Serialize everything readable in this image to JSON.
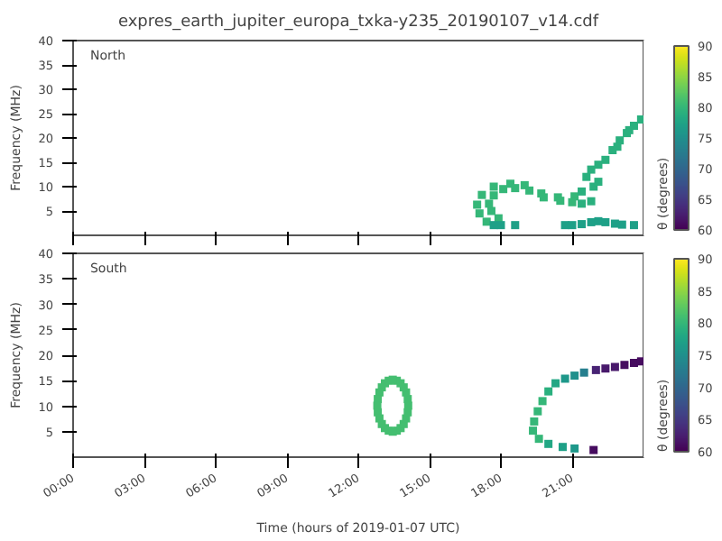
{
  "chart_data": [
    {
      "type": "scatter",
      "title": "expres_earth_jupiter_europa_txka-y235_20190107_v14.cdf",
      "ylabel": "Frequency (MHz)",
      "clabel": "θ (degrees)",
      "annotations": [
        "North"
      ],
      "marker": "square",
      "tick_labels": "y",
      "xlim": [
        0,
        24
      ],
      "xticks": [
        {
          "value": 0,
          "label": null
        },
        {
          "value": 3,
          "label": null
        },
        {
          "value": 6,
          "label": null
        },
        {
          "value": 9,
          "label": null
        },
        {
          "value": 12,
          "label": null
        },
        {
          "value": 15,
          "label": null
        },
        {
          "value": 18,
          "label": null
        },
        {
          "value": 21,
          "label": null
        }
      ],
      "ylim": [
        0,
        40
      ],
      "yticks": [
        5,
        10,
        15,
        20,
        25,
        30,
        35,
        40
      ],
      "clim": [
        60,
        90
      ],
      "cticks": [
        60,
        65,
        70,
        75,
        80,
        85,
        90
      ],
      "x": [
        17.4,
        17.1,
        17.0,
        17.2,
        17.7,
        18.4,
        19.0,
        19.7,
        20.4,
        21.1,
        17.9,
        17.6,
        17.5,
        17.7,
        18.1,
        18.6,
        19.2,
        19.8,
        20.5,
        21.0,
        21.4,
        21.4,
        21.6,
        21.8,
        21.9,
        21.8,
        22.1,
        22.1,
        22.4,
        22.7,
        23.0,
        23.3,
        23.6,
        23.9,
        22.9,
        23.4,
        17.7,
        18.0,
        18.6,
        20.7,
        21.0,
        21.4,
        21.8,
        22.1,
        22.4,
        22.8,
        23.1,
        23.6
      ],
      "values": [
        2.8,
        4.5,
        6.3,
        8.3,
        10.0,
        10.6,
        10.3,
        8.6,
        7.8,
        8.0,
        3.5,
        5.0,
        6.5,
        8.2,
        9.5,
        9.7,
        9.2,
        7.8,
        7.1,
        6.8,
        6.5,
        9.0,
        12.0,
        7.0,
        10.0,
        13.5,
        14.5,
        11.0,
        15.5,
        17.5,
        19.5,
        21.0,
        22.5,
        23.8,
        18.2,
        21.6,
        2.1,
        2.1,
        2.1,
        2.1,
        2.1,
        2.3,
        2.7,
        2.9,
        2.7,
        2.4,
        2.2,
        2.1
      ],
      "cvalues": [
        80,
        80,
        80,
        80,
        80,
        80,
        80,
        80,
        80,
        80,
        80,
        80,
        80,
        80,
        80,
        80,
        80,
        80,
        80,
        80,
        79,
        79,
        79,
        79,
        79,
        79,
        79,
        79,
        79,
        79,
        79,
        79,
        79,
        79,
        79,
        79,
        77,
        77,
        77,
        77,
        77,
        77,
        77,
        77,
        77,
        77,
        77,
        77
      ]
    },
    {
      "type": "scatter",
      "xlabel": "Time (hours of 2019-01-07 UTC)",
      "ylabel": "Frequency (MHz)",
      "clabel": "θ (degrees)",
      "annotations": [
        "South"
      ],
      "marker": "square",
      "xlim": [
        0,
        24
      ],
      "xticks": [
        {
          "value": 0,
          "label": "00:00"
        },
        {
          "value": 3,
          "label": "03:00"
        },
        {
          "value": 6,
          "label": "06:00"
        },
        {
          "value": 9,
          "label": "09:00"
        },
        {
          "value": 12,
          "label": "12:00"
        },
        {
          "value": 15,
          "label": "15:00"
        },
        {
          "value": 18,
          "label": "18:00"
        },
        {
          "value": 21,
          "label": "21:00"
        }
      ],
      "ylim": [
        0,
        40
      ],
      "yticks": [
        5,
        10,
        15,
        20,
        25,
        30,
        35,
        40
      ],
      "clim": [
        60,
        90
      ],
      "cticks": [
        60,
        65,
        70,
        75,
        80,
        85,
        90
      ],
      "x": [
        14.1,
        14.08,
        14.01,
        13.91,
        13.78,
        13.62,
        13.45,
        13.28,
        13.12,
        12.99,
        12.89,
        12.82,
        12.8,
        12.82,
        12.89,
        12.99,
        13.12,
        13.28,
        13.45,
        13.62,
        13.78,
        13.91,
        14.01,
        14.08,
        21.1,
        20.6,
        20.0,
        19.6,
        19.35,
        19.4,
        19.55,
        19.75,
        20.0,
        20.3,
        20.7,
        21.1,
        21.5,
        22.0,
        22.4,
        22.8,
        23.2,
        23.6,
        23.9,
        21.9
      ],
      "values": [
        10.1,
        11.4,
        12.7,
        13.7,
        14.5,
        15.0,
        15.2,
        15.0,
        14.5,
        13.7,
        12.7,
        11.4,
        10.1,
        8.8,
        7.6,
        6.5,
        5.7,
        5.2,
        5.0,
        5.2,
        5.7,
        6.5,
        7.6,
        8.8,
        1.7,
        2.0,
        2.6,
        3.6,
        5.2,
        7.0,
        9.0,
        11.0,
        12.9,
        14.5,
        15.4,
        16.0,
        16.6,
        17.1,
        17.4,
        17.7,
        18.1,
        18.5,
        18.8,
        1.4
      ],
      "cvalues": [
        81,
        81,
        81,
        81,
        81,
        81,
        81,
        81,
        81,
        81,
        81,
        81,
        81,
        81,
        81,
        81,
        81,
        81,
        81,
        81,
        81,
        81,
        81,
        81,
        76,
        77,
        78,
        80,
        80,
        80,
        80,
        80,
        79,
        78,
        76,
        75,
        73,
        63,
        62,
        62,
        61,
        61,
        61,
        61
      ]
    }
  ]
}
